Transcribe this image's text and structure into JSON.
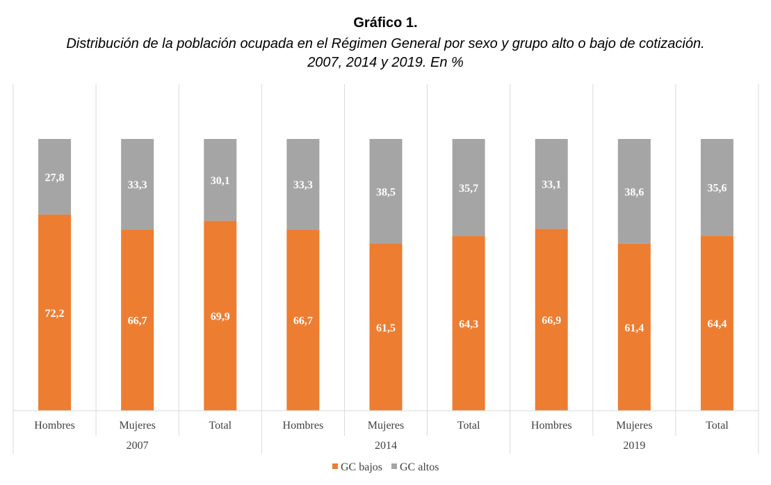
{
  "title": "Gráfico 1.",
  "subtitle_line1": "Distribución de la población ocupada en el Régimen General por sexo y grupo alto o bajo de cotización.",
  "subtitle_line2": "2007, 2014 y 2019. En %",
  "chart_data": {
    "type": "bar",
    "stacked": true,
    "groups": [
      "2007",
      "2014",
      "2019"
    ],
    "categories": [
      "Hombres",
      "Mujeres",
      "Total",
      "Hombres",
      "Mujeres",
      "Total",
      "Hombres",
      "Mujeres",
      "Total"
    ],
    "series": [
      {
        "name": "GC bajos",
        "color": "#ED7D31",
        "values": [
          72.2,
          66.7,
          69.9,
          66.7,
          61.5,
          64.3,
          66.9,
          61.4,
          64.4
        ]
      },
      {
        "name": "GC altos",
        "color": "#A5A5A5",
        "values": [
          27.8,
          33.3,
          30.1,
          33.3,
          38.5,
          35.7,
          33.1,
          38.6,
          35.6
        ]
      }
    ],
    "data_labels": [
      [
        "72,2",
        "66,7",
        "69,9",
        "66,7",
        "61,5",
        "64,3",
        "66,9",
        "61,4",
        "64,4"
      ],
      [
        "27,8",
        "33,3",
        "30,1",
        "33,3",
        "38,5",
        "35,7",
        "33,1",
        "38,6",
        "35,6"
      ]
    ],
    "ylim": [
      0,
      100
    ],
    "grid": "vertical",
    "legend_position": "bottom"
  }
}
